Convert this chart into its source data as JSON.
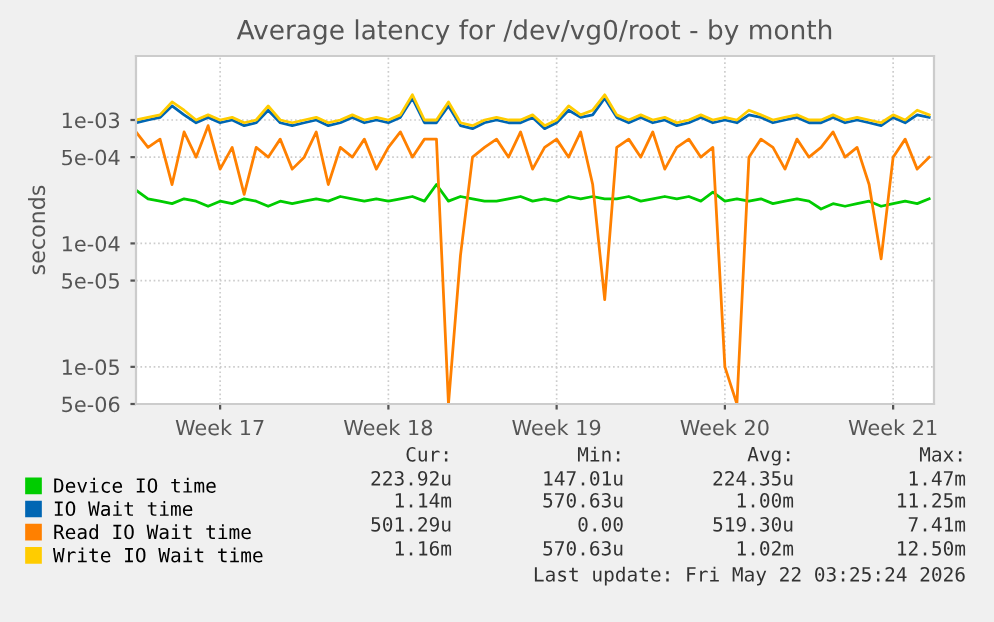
{
  "chart_data": {
    "type": "line",
    "title": "Average latency for /dev/vg0/root - by month",
    "ylabel": "seconds",
    "categories": [
      null,
      null,
      null,
      null,
      null,
      null,
      null,
      "Week 17",
      null,
      null,
      null,
      null,
      null,
      null,
      null,
      null,
      null,
      null,
      null,
      null,
      null,
      "Week 18",
      null,
      null,
      null,
      null,
      null,
      null,
      null,
      null,
      null,
      null,
      null,
      null,
      null,
      "Week 19",
      null,
      null,
      null,
      null,
      null,
      null,
      null,
      null,
      null,
      null,
      null,
      null,
      null,
      "Week 20",
      null,
      null,
      null,
      null,
      null,
      null,
      null,
      null,
      null,
      null,
      null,
      null,
      null,
      "Week 21",
      null,
      null,
      null
    ],
    "series": [
      {
        "name": "Device IO time",
        "color": "#00cc00",
        "values": [
          0.00027,
          0.00023,
          0.00022,
          0.00021,
          0.00023,
          0.00022,
          0.0002,
          0.00022,
          0.00021,
          0.00023,
          0.00022,
          0.0002,
          0.00022,
          0.00021,
          0.00022,
          0.00023,
          0.00022,
          0.00024,
          0.00023,
          0.00022,
          0.00023,
          0.00022,
          0.00023,
          0.00024,
          0.00022,
          0.0003,
          0.00022,
          0.00024,
          0.00023,
          0.00022,
          0.00022,
          0.00023,
          0.00024,
          0.00022,
          0.00023,
          0.00022,
          0.00024,
          0.00023,
          0.00024,
          0.00023,
          0.00023,
          0.00024,
          0.00022,
          0.00023,
          0.00024,
          0.00023,
          0.00024,
          0.00022,
          0.00026,
          0.00022,
          0.00023,
          0.00022,
          0.00023,
          0.00021,
          0.00022,
          0.00023,
          0.00022,
          0.00019,
          0.00021,
          0.0002,
          0.00021,
          0.00022,
          0.0002,
          0.00021,
          0.00022,
          0.00021,
          0.00023
        ]
      },
      {
        "name": "IO Wait time",
        "color": "#0066b3",
        "values": [
          0.00095,
          0.001,
          0.00105,
          0.0013,
          0.0011,
          0.00095,
          0.00105,
          0.00095,
          0.001,
          0.0009,
          0.00095,
          0.0012,
          0.00095,
          0.0009,
          0.00095,
          0.001,
          0.0009,
          0.00095,
          0.00105,
          0.00095,
          0.001,
          0.00095,
          0.00105,
          0.0015,
          0.00095,
          0.00095,
          0.0013,
          0.0009,
          0.00085,
          0.00095,
          0.001,
          0.00095,
          0.00095,
          0.00105,
          0.00085,
          0.00095,
          0.0012,
          0.00105,
          0.0011,
          0.0015,
          0.00105,
          0.00095,
          0.00105,
          0.00095,
          0.001,
          0.0009,
          0.00095,
          0.00105,
          0.00095,
          0.001,
          0.00095,
          0.0011,
          0.00105,
          0.00095,
          0.001,
          0.00105,
          0.00095,
          0.00095,
          0.00105,
          0.00095,
          0.001,
          0.00095,
          0.0009,
          0.00105,
          0.00095,
          0.0011,
          0.00105
        ]
      },
      {
        "name": "Read IO Wait time",
        "color": "#ff8000",
        "values": [
          0.0008,
          0.0006,
          0.0007,
          0.0003,
          0.0008,
          0.0005,
          0.0009,
          0.0004,
          0.0006,
          0.00025,
          0.0006,
          0.0005,
          0.0007,
          0.0004,
          0.0005,
          0.0008,
          0.0003,
          0.0006,
          0.0005,
          0.0007,
          0.0004,
          0.0006,
          0.0008,
          0.0005,
          0.0007,
          0.0007,
          5e-06,
          8e-05,
          0.0005,
          0.0006,
          0.0007,
          0.0005,
          0.0008,
          0.0004,
          0.0006,
          0.0007,
          0.0005,
          0.0008,
          0.0003,
          3.5e-05,
          0.0006,
          0.0007,
          0.0005,
          0.0008,
          0.0004,
          0.0006,
          0.0007,
          0.0005,
          0.0006,
          1e-05,
          5e-06,
          0.0005,
          0.0007,
          0.0006,
          0.0004,
          0.0007,
          0.0005,
          0.0006,
          0.0008,
          0.0005,
          0.0006,
          0.0003,
          7.5e-05,
          0.0005,
          0.0007,
          0.0004,
          0.0005
        ]
      },
      {
        "name": "Write IO Wait time",
        "color": "#ffcc00",
        "values": [
          0.001,
          0.00105,
          0.0011,
          0.0014,
          0.0012,
          0.001,
          0.0011,
          0.001,
          0.00105,
          0.00095,
          0.001,
          0.0013,
          0.001,
          0.00095,
          0.001,
          0.00105,
          0.00095,
          0.001,
          0.0011,
          0.001,
          0.00105,
          0.001,
          0.0011,
          0.0016,
          0.001,
          0.001,
          0.0014,
          0.00095,
          0.0009,
          0.001,
          0.00105,
          0.001,
          0.001,
          0.0011,
          0.0009,
          0.001,
          0.0013,
          0.0011,
          0.0012,
          0.0016,
          0.0011,
          0.001,
          0.0011,
          0.001,
          0.00105,
          0.00095,
          0.001,
          0.0011,
          0.001,
          0.00105,
          0.001,
          0.0012,
          0.0011,
          0.001,
          0.00105,
          0.0011,
          0.001,
          0.001,
          0.0011,
          0.001,
          0.00105,
          0.001,
          0.00095,
          0.0011,
          0.001,
          0.0012,
          0.0011
        ]
      }
    ],
    "log": "y",
    "ylim": [
      5e-06,
      0.0033
    ],
    "yticks": [
      {
        "value": 5e-06,
        "label": "5e-06"
      },
      {
        "value": 1e-05,
        "label": "1e-05"
      },
      {
        "value": 5e-05,
        "label": "5e-05"
      },
      {
        "value": 0.0001,
        "label": "1e-04"
      },
      {
        "value": 0.0005,
        "label": "5e-04"
      },
      {
        "value": 0.001,
        "label": "1e-03"
      }
    ],
    "grid": true,
    "legend": "bottom",
    "line_style": "solid",
    "marker": "none",
    "annotations": [
      "Cur:",
      "Min:",
      "Avg:",
      "Max:",
      "223.92u",
      "147.01u",
      "224.35u",
      "1.47m",
      "1.14m",
      "570.63u",
      "1.00m",
      "11.25m",
      "501.29u",
      "0.00",
      "519.30u",
      "7.41m",
      "1.16m",
      "570.63u",
      "1.02m",
      "12.50m",
      "Last update: Fri May 22 03:25:24 2026"
    ]
  }
}
